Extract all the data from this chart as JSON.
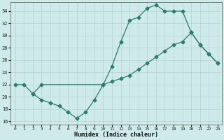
{
  "line1_x": [
    0,
    1,
    2,
    3,
    10,
    11,
    12,
    13,
    14,
    15,
    16,
    17,
    18,
    19,
    20,
    21,
    22,
    23
  ],
  "line1_y": [
    22,
    22,
    20.5,
    22,
    22,
    25,
    29,
    32.5,
    33,
    34.5,
    35,
    34,
    34,
    34,
    30.5,
    28.5,
    27,
    25.5
  ],
  "line2_x": [
    10,
    11,
    12,
    13,
    14,
    15,
    16,
    17,
    18,
    19,
    20,
    21,
    22,
    23
  ],
  "line2_y": [
    22,
    22.5,
    23,
    23.5,
    24.5,
    25.5,
    26.5,
    27.5,
    28.5,
    29,
    30.5,
    28.5,
    27,
    25.5
  ],
  "line3_x": [
    2,
    3,
    4,
    5,
    6,
    7,
    8,
    9,
    10
  ],
  "line3_y": [
    20.5,
    19.5,
    19,
    18.5,
    17.5,
    16.5,
    17.5,
    19.5,
    22
  ],
  "line_color": "#2d7c6e",
  "bg_color": "#ceeaea",
  "grid_color": "#b8d8d8",
  "xlabel": "Humidex (Indice chaleur)",
  "xlim": [
    -0.5,
    23.5
  ],
  "ylim": [
    15.5,
    35.5
  ],
  "yticks": [
    16,
    18,
    20,
    22,
    24,
    26,
    28,
    30,
    32,
    34
  ],
  "xticks": [
    0,
    1,
    2,
    3,
    4,
    5,
    6,
    7,
    8,
    9,
    10,
    11,
    12,
    13,
    14,
    15,
    16,
    17,
    18,
    19,
    20,
    21,
    22,
    23
  ]
}
